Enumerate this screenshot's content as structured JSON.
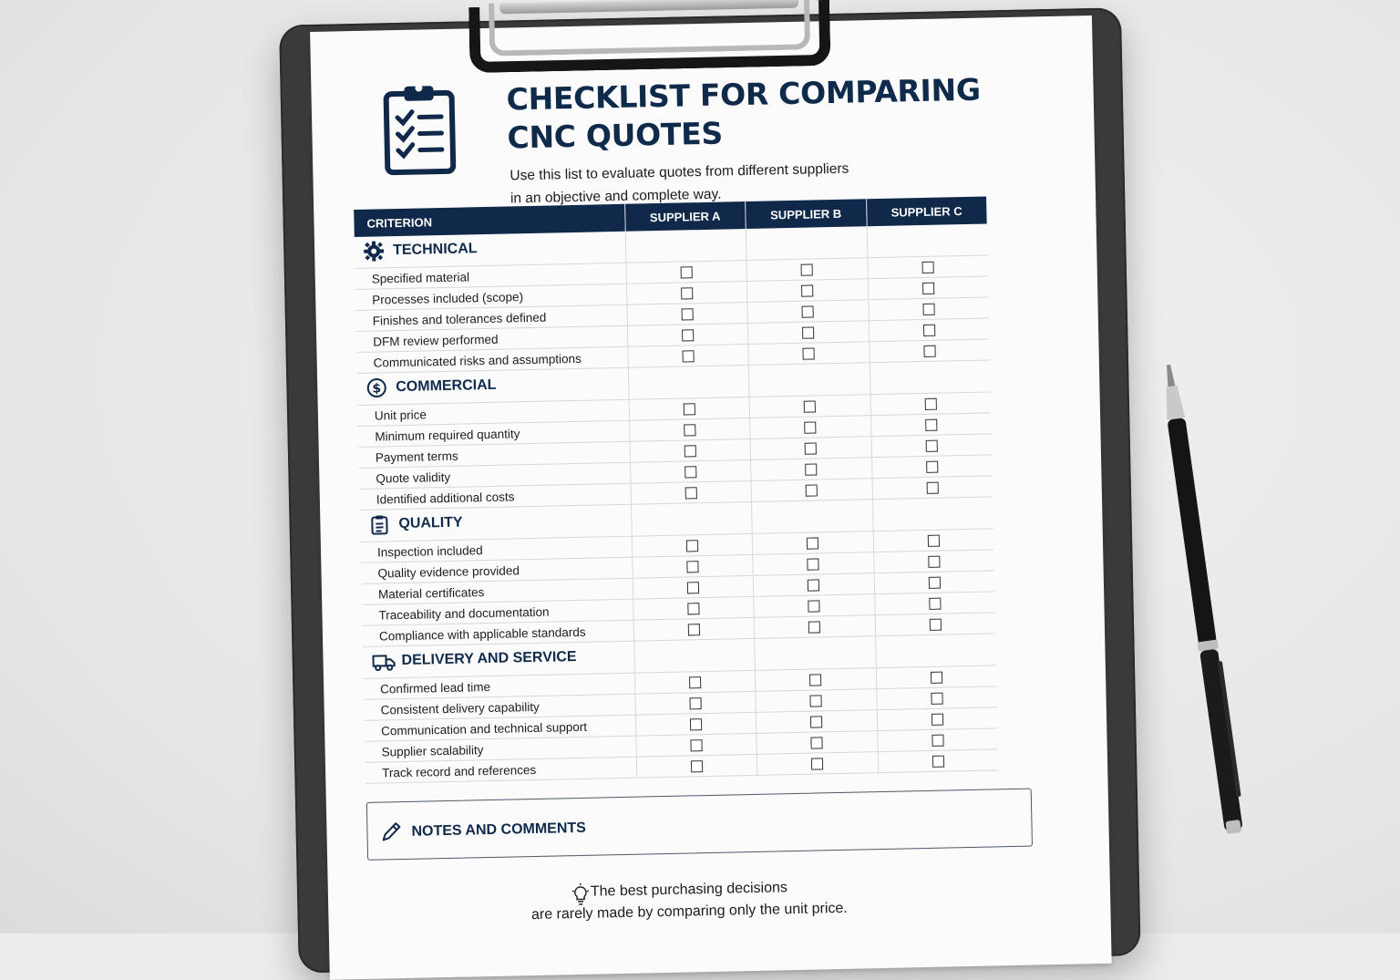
{
  "document": {
    "title_line1": "CHECKLIST FOR COMPARING",
    "title_line2": "CNC QUOTES",
    "subtitle_line1": "Use this list to evaluate quotes from different suppliers",
    "subtitle_line2": "in an objective and complete way."
  },
  "table": {
    "headers": {
      "criterion": "CRITERION",
      "supplier_a": "SUPPLIER A",
      "supplier_b": "SUPPLIER B",
      "supplier_c": "SUPPLIER C"
    },
    "sections": [
      {
        "title": "TECHNICAL",
        "icon": "gear-icon",
        "items": [
          "Specified material",
          "Processes included (scope)",
          "Finishes and tolerances defined",
          "DFM review performed",
          "Communicated risks and assumptions"
        ]
      },
      {
        "title": "COMMERCIAL",
        "icon": "dollar-circle-icon",
        "items": [
          "Unit price",
          "Minimum required quantity",
          "Payment terms",
          "Quote validity",
          "Identified additional costs"
        ]
      },
      {
        "title": "QUALITY",
        "icon": "clipboard-list-icon",
        "items": [
          "Inspection included",
          "Quality evidence provided",
          "Material certificates",
          "Traceability and documentation",
          "Compliance with applicable standards"
        ]
      },
      {
        "title": "DELIVERY AND SERVICE",
        "icon": "truck-icon",
        "items": [
          "Confirmed lead time",
          "Consistent delivery capability",
          "Communication and technical support",
          "Supplier scalability",
          "Track record and references"
        ]
      }
    ]
  },
  "notes": {
    "title": "NOTES AND COMMENTS",
    "icon": "pencil-icon"
  },
  "tip": {
    "icon": "lightbulb-icon",
    "line1": "The best purchasing decisions",
    "line2": "are rarely made by comparing only the unit price."
  },
  "colors": {
    "navy": "#10294a",
    "board": "#3a3a3b",
    "paper": "#fbfbfb"
  }
}
